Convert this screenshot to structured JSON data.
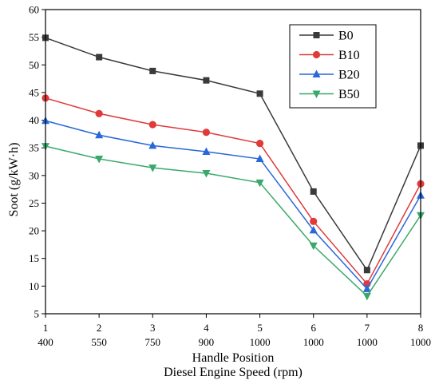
{
  "chart_data": {
    "type": "line",
    "xlabel": "Handle Position",
    "xlabel2": "Diesel Engine Speed (rpm)",
    "ylabel": "Soot (g/kW·h)",
    "ylim": [
      5,
      60
    ],
    "yticks": [
      "5",
      "10",
      "15",
      "20",
      "25",
      "30",
      "35",
      "40",
      "45",
      "50",
      "55",
      "60"
    ],
    "x": [
      1,
      2,
      3,
      4,
      5,
      6,
      7,
      8
    ],
    "xticks": [
      "1",
      "2",
      "3",
      "4",
      "5",
      "6",
      "7",
      "8"
    ],
    "xticks_speed": [
      "400",
      "550",
      "750",
      "900",
      "1000",
      "1000",
      "1000",
      "1000"
    ],
    "grid": false,
    "legend_position": "top-right",
    "series": [
      {
        "name": "B0",
        "color": "#3a3a3a",
        "marker": "square",
        "values": [
          54.9,
          51.4,
          48.9,
          47.2,
          44.8,
          27.1,
          12.9,
          35.4
        ]
      },
      {
        "name": "B10",
        "color": "#e03a3a",
        "marker": "circle",
        "values": [
          44.0,
          41.2,
          39.2,
          37.8,
          35.8,
          21.7,
          10.4,
          28.5
        ]
      },
      {
        "name": "B20",
        "color": "#2868d8",
        "marker": "triangle-up",
        "values": [
          39.9,
          37.3,
          35.4,
          34.3,
          33.0,
          20.1,
          9.5,
          26.4
        ]
      },
      {
        "name": "B50",
        "color": "#3aa86a",
        "marker": "triangle-down",
        "values": [
          35.3,
          33.0,
          31.4,
          30.4,
          28.7,
          17.3,
          8.2,
          22.8
        ]
      }
    ]
  }
}
